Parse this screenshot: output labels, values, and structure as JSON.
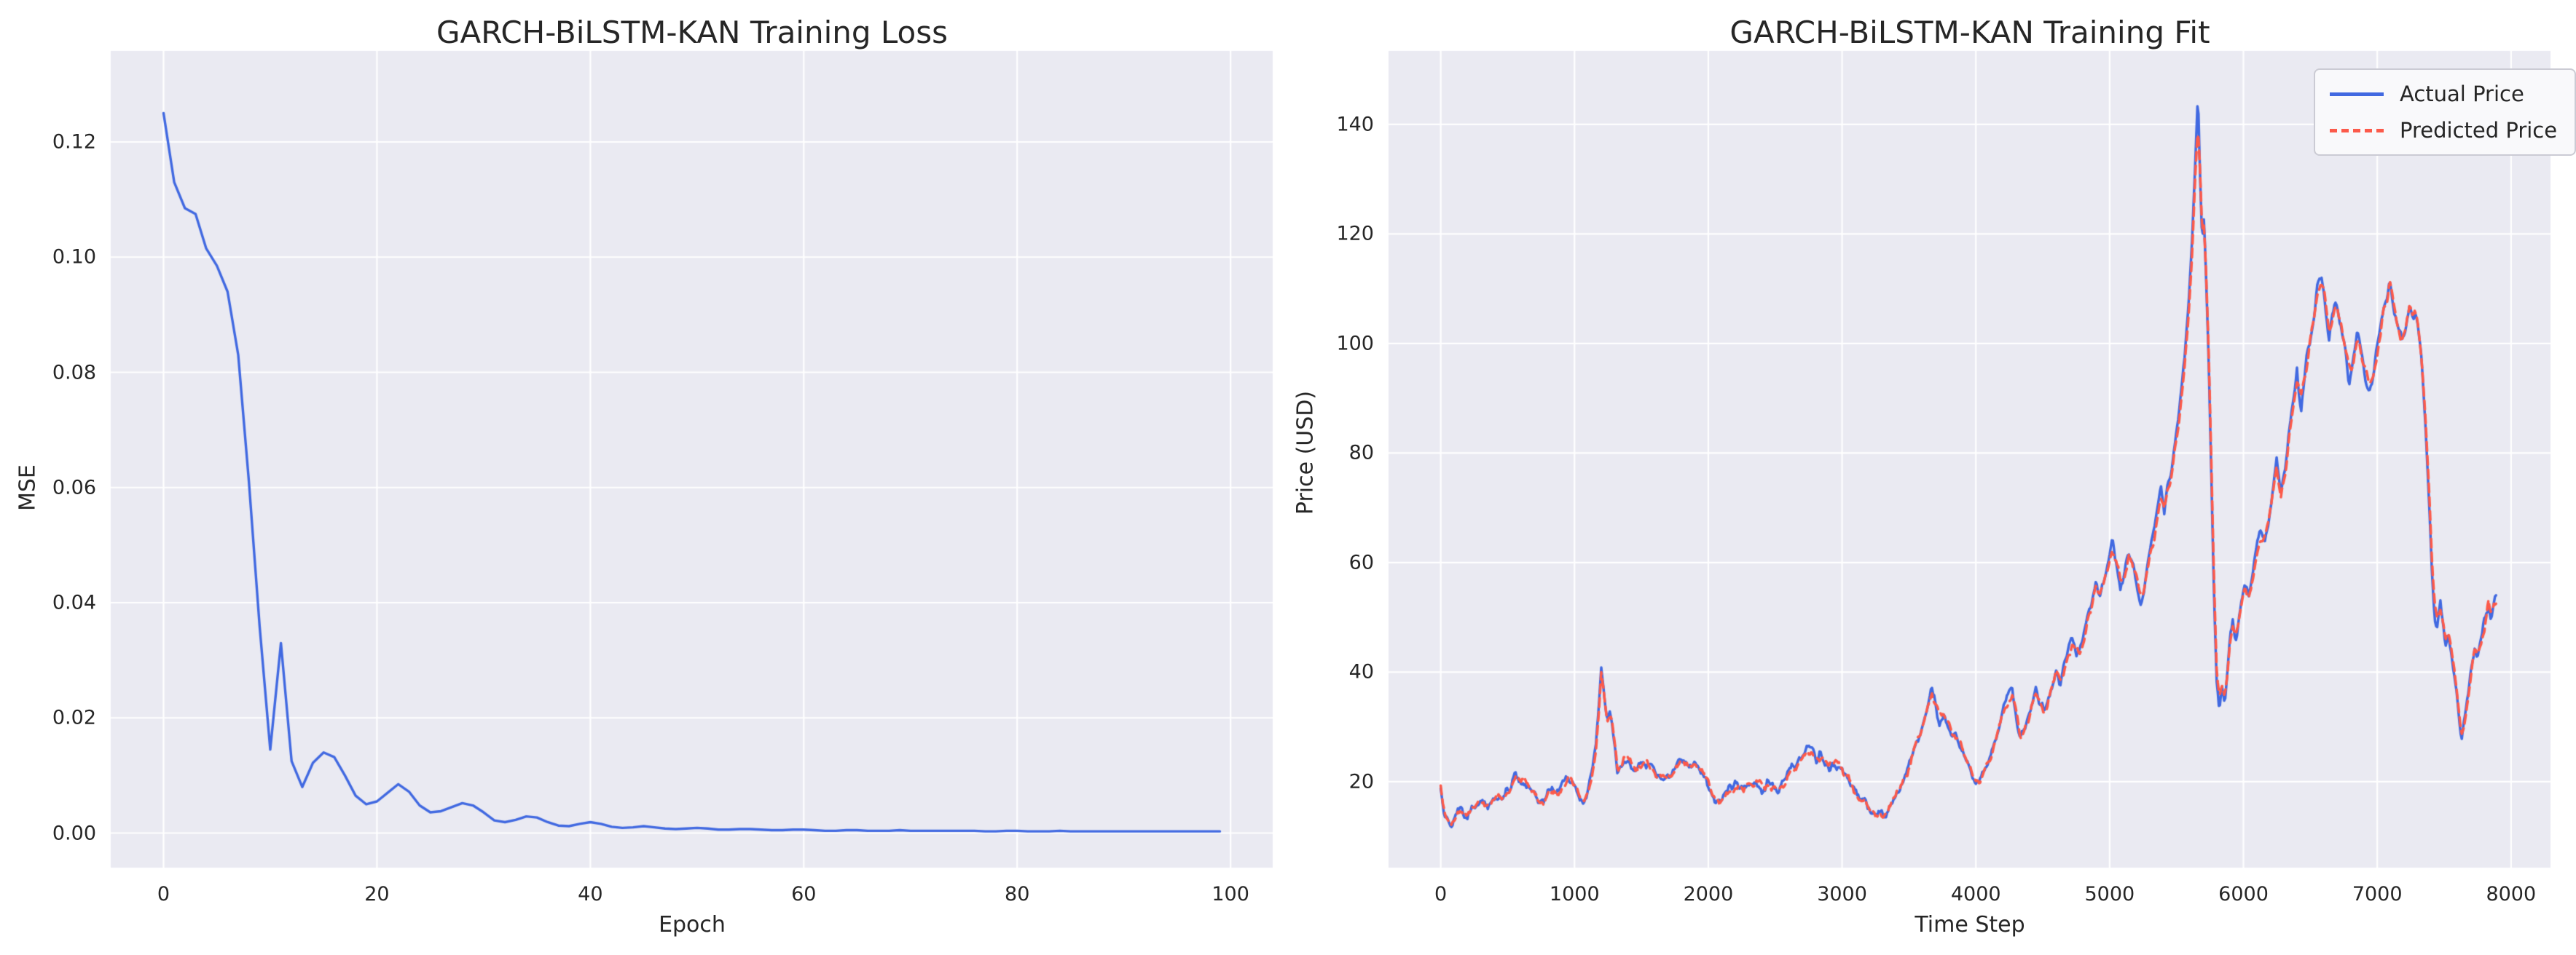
{
  "figure": {
    "background": "#ffffff",
    "axes_background": "#eaeaf2",
    "grid_color": "#ffffff",
    "text_color": "#262626",
    "actual_color": "#4169e1",
    "predicted_color": "#fc5a4a"
  },
  "legend": {
    "entries": [
      {
        "label": "Actual Price",
        "color": "#4169e1",
        "style": "solid"
      },
      {
        "label": "Predicted Price",
        "color": "#fc5a4a",
        "style": "dashed"
      }
    ]
  },
  "chart_data": [
    {
      "type": "line",
      "title": "GARCH-BiLSTM-KAN Training Loss",
      "xlabel": "Epoch",
      "ylabel": "MSE",
      "grid": true,
      "legend": false,
      "xticks": [
        0,
        20,
        40,
        60,
        80,
        100
      ],
      "xtick_labels": [
        "0",
        "20",
        "40",
        "60",
        "80",
        "100"
      ],
      "yticks": [
        0.12,
        0.1,
        0.08,
        0.06,
        0.04,
        0.02,
        0.0
      ],
      "ytick_labels": [
        "0.12",
        "0.10",
        "0.08",
        "0.06",
        "0.04",
        "0.02",
        "0.00"
      ],
      "xlim": [
        -4.95,
        103.95
      ],
      "ylim": [
        -0.006,
        0.1358
      ],
      "series_name": "Training loss (MSE)",
      "line_color": "#4169e1",
      "values": [
        0.125,
        0.113,
        0.1085,
        0.1075,
        0.1015,
        0.0985,
        0.094,
        0.083,
        0.061,
        0.036,
        0.0145,
        0.033,
        0.0125,
        0.008,
        0.0122,
        0.014,
        0.0132,
        0.01,
        0.0065,
        0.005,
        0.0055,
        0.007,
        0.0085,
        0.0072,
        0.0048,
        0.0036,
        0.0038,
        0.0045,
        0.0052,
        0.0048,
        0.0036,
        0.0022,
        0.0019,
        0.0023,
        0.0029,
        0.0027,
        0.0019,
        0.0013,
        0.0012,
        0.0016,
        0.0019,
        0.0016,
        0.0011,
        0.0009,
        0.001,
        0.0012,
        0.001,
        0.0008,
        0.0007,
        0.0008,
        0.0009,
        0.0008,
        0.0006,
        0.0006,
        0.0007,
        0.0007,
        0.0006,
        0.0005,
        0.0005,
        0.0006,
        0.0006,
        0.0005,
        0.0004,
        0.0004,
        0.0005,
        0.0005,
        0.0004,
        0.0004,
        0.0004,
        0.0005,
        0.0004,
        0.0004,
        0.0004,
        0.0004,
        0.0004,
        0.0004,
        0.0004,
        0.0003,
        0.0003,
        0.0004,
        0.0004,
        0.0003,
        0.0003,
        0.0003,
        0.0004,
        0.0003,
        0.0003,
        0.0003,
        0.0003,
        0.0003,
        0.0003,
        0.0003,
        0.0003,
        0.0003,
        0.0003,
        0.0003,
        0.0003,
        0.0003,
        0.0003,
        0.0003
      ]
    },
    {
      "type": "line",
      "title": "GARCH-BiLSTM-KAN Training Fit",
      "xlabel": "Time Step",
      "ylabel": "Price (USD)",
      "grid": true,
      "legend": true,
      "legend_position": "upper right",
      "xticks": [
        0,
        1000,
        2000,
        3000,
        4000,
        5000,
        6000,
        7000,
        8000
      ],
      "xtick_labels": [
        "0",
        "1000",
        "2000",
        "3000",
        "4000",
        "5000",
        "6000",
        "7000",
        "8000"
      ],
      "yticks": [
        140,
        120,
        100,
        80,
        60,
        40,
        20
      ],
      "ytick_labels": [
        "140",
        "120",
        "100",
        "80",
        "60",
        "40",
        "20"
      ],
      "xlim": [
        -390,
        8295
      ],
      "ylim": [
        4.3,
        153.4
      ],
      "noise": {
        "base": 0.55,
        "value_scale": 0.018,
        "fine": 0.4,
        "grid_step": 26,
        "sample_step": 8,
        "seeds": [
          7,
          13
        ],
        "predicted_factor": 0.85
      },
      "t": [
        0,
        15,
        35,
        60,
        80,
        100,
        125,
        150,
        175,
        200,
        230,
        260,
        290,
        320,
        350,
        380,
        410,
        440,
        470,
        500,
        530,
        560,
        590,
        620,
        650,
        680,
        710,
        740,
        770,
        800,
        830,
        860,
        890,
        920,
        950,
        980,
        1010,
        1040,
        1070,
        1100,
        1130,
        1160,
        1185,
        1200,
        1215,
        1230,
        1245,
        1260,
        1280,
        1300,
        1320,
        1345,
        1370,
        1395,
        1420,
        1450,
        1480,
        1510,
        1540,
        1570,
        1600,
        1630,
        1660,
        1690,
        1720,
        1750,
        1780,
        1810,
        1840,
        1870,
        1900,
        1930,
        1960,
        1990,
        2020,
        2050,
        2080,
        2110,
        2140,
        2170,
        2200,
        2240,
        2280,
        2320,
        2360,
        2400,
        2440,
        2480,
        2520,
        2560,
        2600,
        2640,
        2680,
        2720,
        2750,
        2780,
        2810,
        2840,
        2870,
        2900,
        2930,
        2960,
        2990,
        3020,
        3050,
        3080,
        3110,
        3140,
        3170,
        3200,
        3230,
        3260,
        3290,
        3310,
        3340,
        3370,
        3400,
        3430,
        3460,
        3490,
        3520,
        3550,
        3580,
        3610,
        3640,
        3670,
        3700,
        3730,
        3760,
        3790,
        3820,
        3850,
        3880,
        3910,
        3940,
        3970,
        4000,
        4030,
        4060,
        4090,
        4120,
        4150,
        4180,
        4210,
        4240,
        4270,
        4300,
        4330,
        4360,
        4390,
        4420,
        4450,
        4480,
        4510,
        4540,
        4570,
        4600,
        4630,
        4660,
        4690,
        4720,
        4750,
        4780,
        4810,
        4840,
        4870,
        4900,
        4930,
        4960,
        4990,
        5020,
        5050,
        5080,
        5110,
        5140,
        5170,
        5200,
        5230,
        5260,
        5290,
        5320,
        5350,
        5380,
        5410,
        5440,
        5470,
        5500,
        5530,
        5560,
        5590,
        5615,
        5640,
        5660,
        5675,
        5690,
        5705,
        5720,
        5740,
        5760,
        5780,
        5800,
        5820,
        5840,
        5860,
        5880,
        5900,
        5920,
        5940,
        5960,
        5980,
        6010,
        6040,
        6070,
        6100,
        6130,
        6160,
        6190,
        6220,
        6250,
        6280,
        6310,
        6340,
        6370,
        6400,
        6430,
        6460,
        6490,
        6520,
        6550,
        6580,
        6610,
        6640,
        6670,
        6700,
        6730,
        6760,
        6790,
        6820,
        6850,
        6880,
        6910,
        6940,
        6970,
        7000,
        7030,
        7060,
        7090,
        7120,
        7150,
        7180,
        7210,
        7240,
        7270,
        7300,
        7330,
        7360,
        7390,
        7410,
        7430,
        7450,
        7470,
        7490,
        7510,
        7530,
        7550,
        7570,
        7590,
        7610,
        7630,
        7650,
        7670,
        7690,
        7710,
        7730,
        7750,
        7770,
        7790,
        7810,
        7830,
        7850,
        7870,
        7890
      ],
      "series": [
        {
          "name": "Actual Price",
          "color": "#4169e1",
          "style": "solid",
          "values": [
            19.5,
            16,
            13.5,
            12.5,
            11.5,
            13,
            15,
            15.5,
            14,
            13.5,
            15,
            15.5,
            16.5,
            16,
            15.5,
            16.5,
            17.5,
            17,
            17.5,
            18,
            19.5,
            21.5,
            20.5,
            20,
            19.5,
            18.5,
            17.5,
            16.5,
            16,
            18,
            18.5,
            17.5,
            18.5,
            19.5,
            21,
            20.5,
            19,
            17,
            16.5,
            18.5,
            22,
            27,
            35,
            41,
            37,
            33.5,
            30.5,
            32.5,
            30.5,
            27,
            22,
            23,
            24.5,
            23.5,
            23,
            22.5,
            23,
            24,
            23.5,
            22.5,
            21.5,
            20.5,
            20,
            20.5,
            21.5,
            22.5,
            23.5,
            23,
            22.5,
            22.5,
            23,
            22,
            21,
            20,
            18,
            16.5,
            16,
            17,
            18,
            18.5,
            19.5,
            19,
            18.5,
            19.5,
            20,
            19,
            19.5,
            19,
            18.5,
            20,
            21.5,
            22.5,
            23.5,
            25,
            26.5,
            25.5,
            24,
            24.5,
            23,
            22.5,
            23.5,
            23,
            22,
            21,
            20,
            18.5,
            17.5,
            16.5,
            16,
            15,
            14.5,
            13.5,
            14.5,
            13.2,
            14.5,
            16,
            17.5,
            19,
            20.5,
            22.5,
            25,
            27.5,
            29,
            31.5,
            34.5,
            36.5,
            33.5,
            31,
            32.5,
            30,
            28,
            29,
            26.5,
            24.5,
            23,
            21,
            19.5,
            20.5,
            22,
            23.5,
            25.5,
            28,
            31,
            33.5,
            35.5,
            37,
            32,
            27.5,
            29.5,
            32,
            34,
            36.5,
            34,
            32.5,
            35,
            37.5,
            40,
            38,
            41,
            44,
            45.5,
            43,
            44.5,
            47,
            50,
            53,
            56.5,
            54,
            57,
            60,
            63.5,
            60,
            56,
            58.5,
            61,
            59,
            56.5,
            52.5,
            56,
            60,
            64,
            68,
            72.5,
            70,
            74,
            78.5,
            84,
            90,
            97,
            107,
            118,
            133,
            145.5,
            131,
            120,
            123,
            112,
            97,
            76,
            54,
            38,
            33,
            37.5,
            34,
            40,
            46,
            48.5,
            45,
            49,
            53,
            56.5,
            54,
            58,
            62.5,
            66,
            63,
            68,
            73,
            78,
            72,
            77,
            83,
            88,
            94,
            89,
            95,
            100,
            105,
            109,
            113.5,
            107,
            101,
            105,
            108,
            103,
            98,
            94,
            98,
            102,
            98,
            94,
            91,
            95,
            100,
            104,
            108,
            111,
            107,
            103,
            100,
            104,
            107,
            103,
            105,
            97,
            85,
            70,
            58,
            50,
            48,
            52,
            49,
            45,
            47,
            44,
            41,
            37,
            32,
            27.5,
            31,
            35,
            38,
            42,
            45,
            43,
            46,
            48,
            50,
            53,
            50.5,
            52,
            52.5
          ]
        },
        {
          "name": "Predicted Price",
          "color": "#fc5a4a",
          "style": "dashed",
          "values": [
            19.2,
            16.4,
            14,
            13.1,
            12.6,
            13.5,
            14.8,
            15.2,
            14.4,
            13.9,
            14.7,
            15.3,
            16.2,
            16.3,
            15.8,
            16.2,
            17.2,
            17.3,
            17.3,
            17.7,
            19,
            20.8,
            20.8,
            20.3,
            19.8,
            18.9,
            17.9,
            17,
            16.5,
            17.5,
            18.2,
            17.9,
            18.2,
            19.1,
            20.5,
            20.7,
            19.4,
            17.6,
            16.9,
            17.9,
            21.2,
            26,
            33.6,
            39.3,
            37.6,
            34.2,
            31.2,
            31.9,
            30.9,
            27.7,
            23,
            22.8,
            24,
            23.8,
            23.2,
            22.8,
            22.8,
            23.6,
            23.7,
            22.9,
            21.9,
            20.9,
            20.4,
            20.3,
            21.1,
            22.1,
            23,
            23.2,
            22.8,
            22.6,
            22.8,
            22.3,
            21.4,
            20.4,
            18.6,
            17.1,
            16.5,
            16.8,
            17.7,
            18.3,
            19.1,
            19.2,
            18.8,
            19.2,
            19.7,
            19.3,
            19.3,
            19.2,
            18.8,
            19.5,
            21,
            22.1,
            23.1,
            24.4,
            25.9,
            25.9,
            24.5,
            24.3,
            23.5,
            22.8,
            23.1,
            23.2,
            22.4,
            21.4,
            20.4,
            19,
            18,
            17,
            16.4,
            15.5,
            14.9,
            14,
            14.3,
            13.9,
            14.2,
            15.6,
            17.1,
            18.6,
            20.1,
            22,
            24.4,
            26.9,
            28.5,
            30.8,
            33.7,
            35.6,
            34.2,
            31.8,
            32.1,
            30.7,
            28.7,
            28.7,
            27.2,
            25.1,
            23.6,
            21.7,
            20.2,
            20.3,
            21.6,
            23.1,
            25,
            27.4,
            30.3,
            32.8,
            34.8,
            36.2,
            33,
            28.6,
            29.2,
            31.4,
            33.5,
            35.8,
            34.6,
            33,
            34.4,
            36.9,
            39.3,
            38.6,
            40.3,
            43.2,
            44.9,
            43.7,
            44.1,
            46.4,
            49.3,
            52.3,
            55.7,
            54.7,
            56.4,
            59.3,
            62.6,
            60.8,
            56.9,
            58,
            60.4,
            59.5,
            57.1,
            53.4,
            55.3,
            59.2,
            63.2,
            67.2,
            71.7,
            70.7,
            73.3,
            77.7,
            83,
            88.9,
            95.8,
            105.4,
            116.2,
            130.5,
            139.8,
            132.5,
            121.8,
            121.9,
            113.5,
            99,
            78.5,
            57,
            40.5,
            35.1,
            36.9,
            35,
            39,
            45,
            47.7,
            45.8,
            48.2,
            52.2,
            55.8,
            54.6,
            57.3,
            61.7,
            65.2,
            63.7,
            67.2,
            72.1,
            77,
            72.9,
            76.2,
            82.1,
            87.1,
            92.9,
            89.8,
            94.1,
            99,
            104,
            108,
            111.9,
            107.9,
            102,
            104.2,
            107.1,
            103.8,
            98.9,
            94.9,
            97.2,
            101.1,
            98.8,
            94.9,
            91.8,
            94.2,
            99.1,
            103.1,
            107,
            109.8,
            107.8,
            103.8,
            100.7,
            103.2,
            106.2,
            103.7,
            104.4,
            98.2,
            86.8,
            72.2,
            60.1,
            51.8,
            48.9,
            51.2,
            49.6,
            45.8,
            46.5,
            44.7,
            41.7,
            37.8,
            33,
            29,
            30.4,
            34.2,
            37.4,
            41.2,
            44.3,
            43.5,
            45.4,
            47.4,
            49.4,
            52.2,
            51.2,
            51.5,
            52.1
          ]
        }
      ]
    }
  ]
}
